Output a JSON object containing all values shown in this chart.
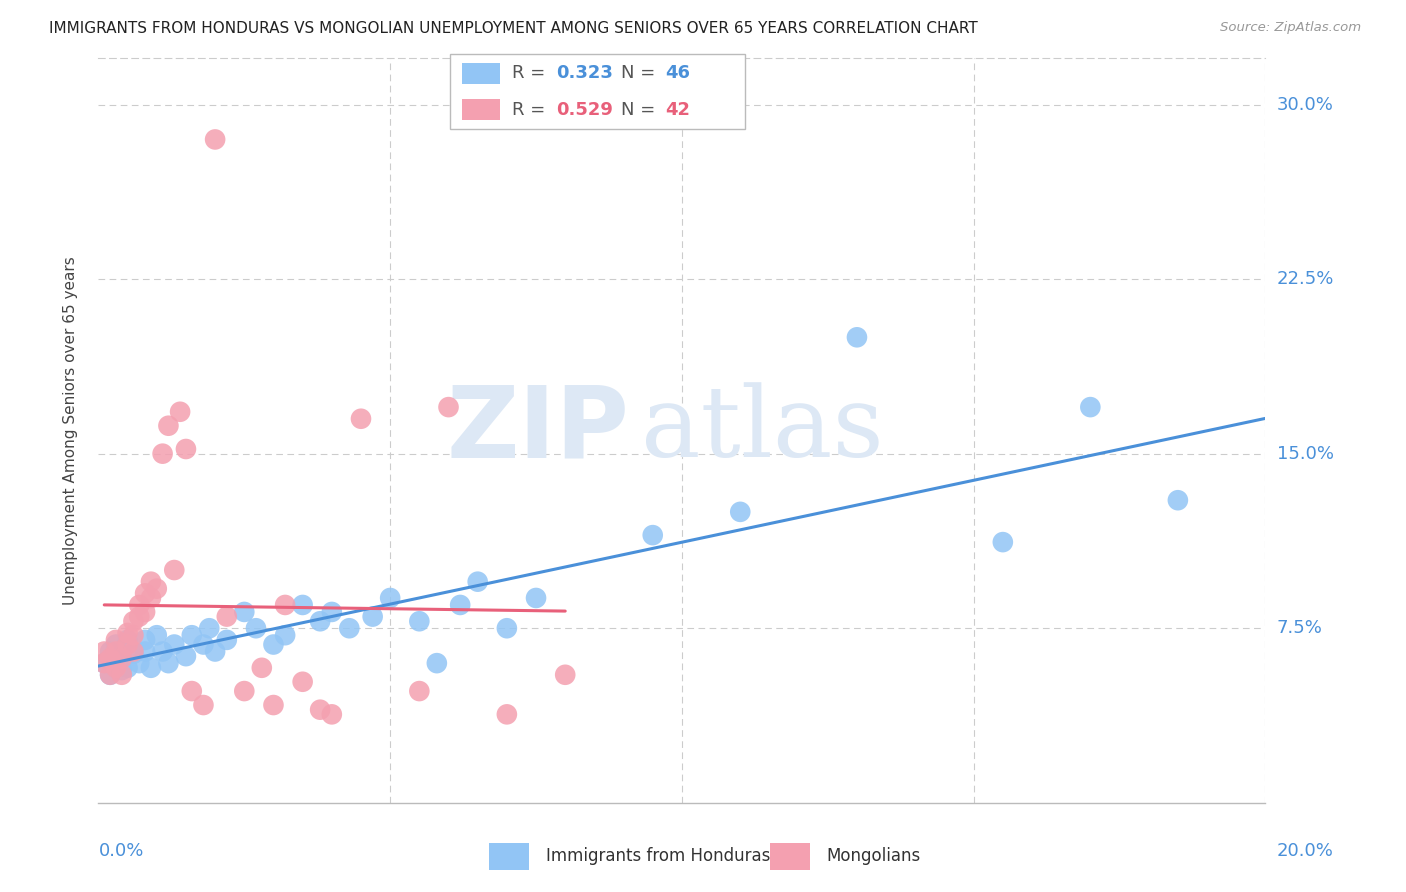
{
  "title": "IMMIGRANTS FROM HONDURAS VS MONGOLIAN UNEMPLOYMENT AMONG SENIORS OVER 65 YEARS CORRELATION CHART",
  "source": "Source: ZipAtlas.com",
  "ylabel": "Unemployment Among Seniors over 65 years",
  "ytick_labels": [
    "7.5%",
    "15.0%",
    "22.5%",
    "30.0%"
  ],
  "ytick_values": [
    0.075,
    0.15,
    0.225,
    0.3
  ],
  "xlim": [
    0.0,
    0.2
  ],
  "ylim": [
    0.0,
    0.32
  ],
  "legend_blue_R": "0.323",
  "legend_blue_N": "46",
  "legend_pink_R": "0.529",
  "legend_pink_N": "42",
  "blue_color": "#92c5f5",
  "pink_color": "#f4a0b0",
  "blue_line_color": "#4a90d9",
  "pink_line_color": "#e8607a",
  "grid_color": "#cccccc",
  "watermark_zip": "ZIP",
  "watermark_atlas": "atlas",
  "watermark_color": "#dde8f5",
  "blue_scatter_x": [
    0.001,
    0.002,
    0.002,
    0.003,
    0.003,
    0.004,
    0.004,
    0.005,
    0.005,
    0.006,
    0.007,
    0.008,
    0.008,
    0.009,
    0.01,
    0.011,
    0.012,
    0.013,
    0.015,
    0.016,
    0.018,
    0.019,
    0.02,
    0.022,
    0.025,
    0.027,
    0.03,
    0.032,
    0.035,
    0.038,
    0.04,
    0.043,
    0.047,
    0.05,
    0.055,
    0.058,
    0.062,
    0.065,
    0.07,
    0.075,
    0.095,
    0.11,
    0.13,
    0.155,
    0.17,
    0.185
  ],
  "blue_scatter_y": [
    0.06,
    0.055,
    0.065,
    0.062,
    0.068,
    0.057,
    0.063,
    0.058,
    0.07,
    0.064,
    0.06,
    0.065,
    0.07,
    0.058,
    0.072,
    0.065,
    0.06,
    0.068,
    0.063,
    0.072,
    0.068,
    0.075,
    0.065,
    0.07,
    0.082,
    0.075,
    0.068,
    0.072,
    0.085,
    0.078,
    0.082,
    0.075,
    0.08,
    0.088,
    0.078,
    0.06,
    0.085,
    0.095,
    0.075,
    0.088,
    0.115,
    0.125,
    0.2,
    0.112,
    0.17,
    0.13
  ],
  "pink_scatter_x": [
    0.001,
    0.001,
    0.002,
    0.002,
    0.003,
    0.003,
    0.003,
    0.004,
    0.004,
    0.005,
    0.005,
    0.006,
    0.006,
    0.006,
    0.007,
    0.007,
    0.008,
    0.008,
    0.009,
    0.009,
    0.01,
    0.011,
    0.012,
    0.013,
    0.014,
    0.015,
    0.016,
    0.018,
    0.02,
    0.022,
    0.025,
    0.028,
    0.03,
    0.032,
    0.035,
    0.038,
    0.04,
    0.045,
    0.055,
    0.06,
    0.07,
    0.08
  ],
  "pink_scatter_y": [
    0.06,
    0.065,
    0.055,
    0.062,
    0.058,
    0.065,
    0.07,
    0.062,
    0.055,
    0.068,
    0.073,
    0.065,
    0.072,
    0.078,
    0.08,
    0.085,
    0.082,
    0.09,
    0.088,
    0.095,
    0.092,
    0.15,
    0.162,
    0.1,
    0.168,
    0.152,
    0.048,
    0.042,
    0.285,
    0.08,
    0.048,
    0.058,
    0.042,
    0.085,
    0.052,
    0.04,
    0.038,
    0.165,
    0.048,
    0.17,
    0.038,
    0.055
  ]
}
